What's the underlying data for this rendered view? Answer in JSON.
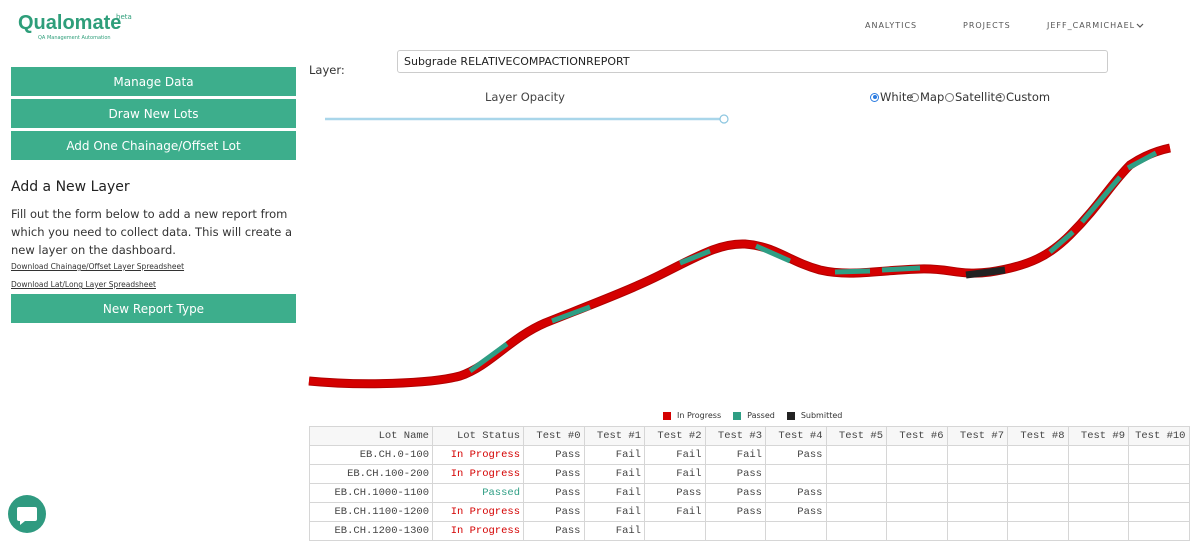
{
  "header": {
    "logo": "Qualomate",
    "badge": "beta",
    "tagline": "QA Management Automation",
    "nav": [
      "ANALYTICS",
      "PROJECTS",
      "JEFF_CARMICHAEL"
    ]
  },
  "sidebar": {
    "buttons": [
      "Manage Data",
      "Draw New Lots",
      "Add One Chainage/Offset Lot"
    ],
    "heading": "Add a New Layer",
    "description": "Fill out the form below to add a new report from which you need to collect data. This will create a new layer on the dashboard.",
    "links": [
      "Download Chainage/Offset Layer Spreadsheet",
      "Download Lat/Long Layer Spreadsheet"
    ],
    "action_button": "New Report Type"
  },
  "layer_panel": {
    "label": "Layer:",
    "selected_layer": "Subgrade RELATIVECOMPACTIONREPORT",
    "opacity_label": "Layer Opacity",
    "basemaps": [
      {
        "label": "White",
        "checked": true
      },
      {
        "label": "Map",
        "checked": false
      },
      {
        "label": "Satellite",
        "checked": false
      },
      {
        "label": "Custom",
        "checked": false
      }
    ]
  },
  "map": {
    "legend": [
      {
        "label": "In Progress",
        "color": "#d40000"
      },
      {
        "label": "Passed",
        "color": "#2e9e84"
      },
      {
        "label": "Submitted",
        "color": "#222222"
      }
    ]
  },
  "table": {
    "columns": [
      "Lot Name",
      "Lot Status",
      "Test #0",
      "Test #1",
      "Test #2",
      "Test #3",
      "Test #4",
      "Test #5",
      "Test #6",
      "Test #7",
      "Test #8",
      "Test #9",
      "Test #10"
    ],
    "rows": [
      [
        "EB.CH.0-100",
        "In Progress",
        "Pass",
        "Fail",
        "Fail",
        "Fail",
        "Pass"
      ],
      [
        "EB.CH.100-200",
        "In Progress",
        "Pass",
        "Fail",
        "Fail",
        "Pass"
      ],
      [
        "EB.CH.1000-1100",
        "Passed",
        "Pass",
        "Fail",
        "Pass",
        "Pass",
        "Pass"
      ],
      [
        "EB.CH.1100-1200",
        "In Progress",
        "Pass",
        "Fail",
        "Fail",
        "Pass",
        "Pass"
      ],
      [
        "EB.CH.1200-1300",
        "In Progress",
        "Pass",
        "Fail"
      ]
    ]
  }
}
